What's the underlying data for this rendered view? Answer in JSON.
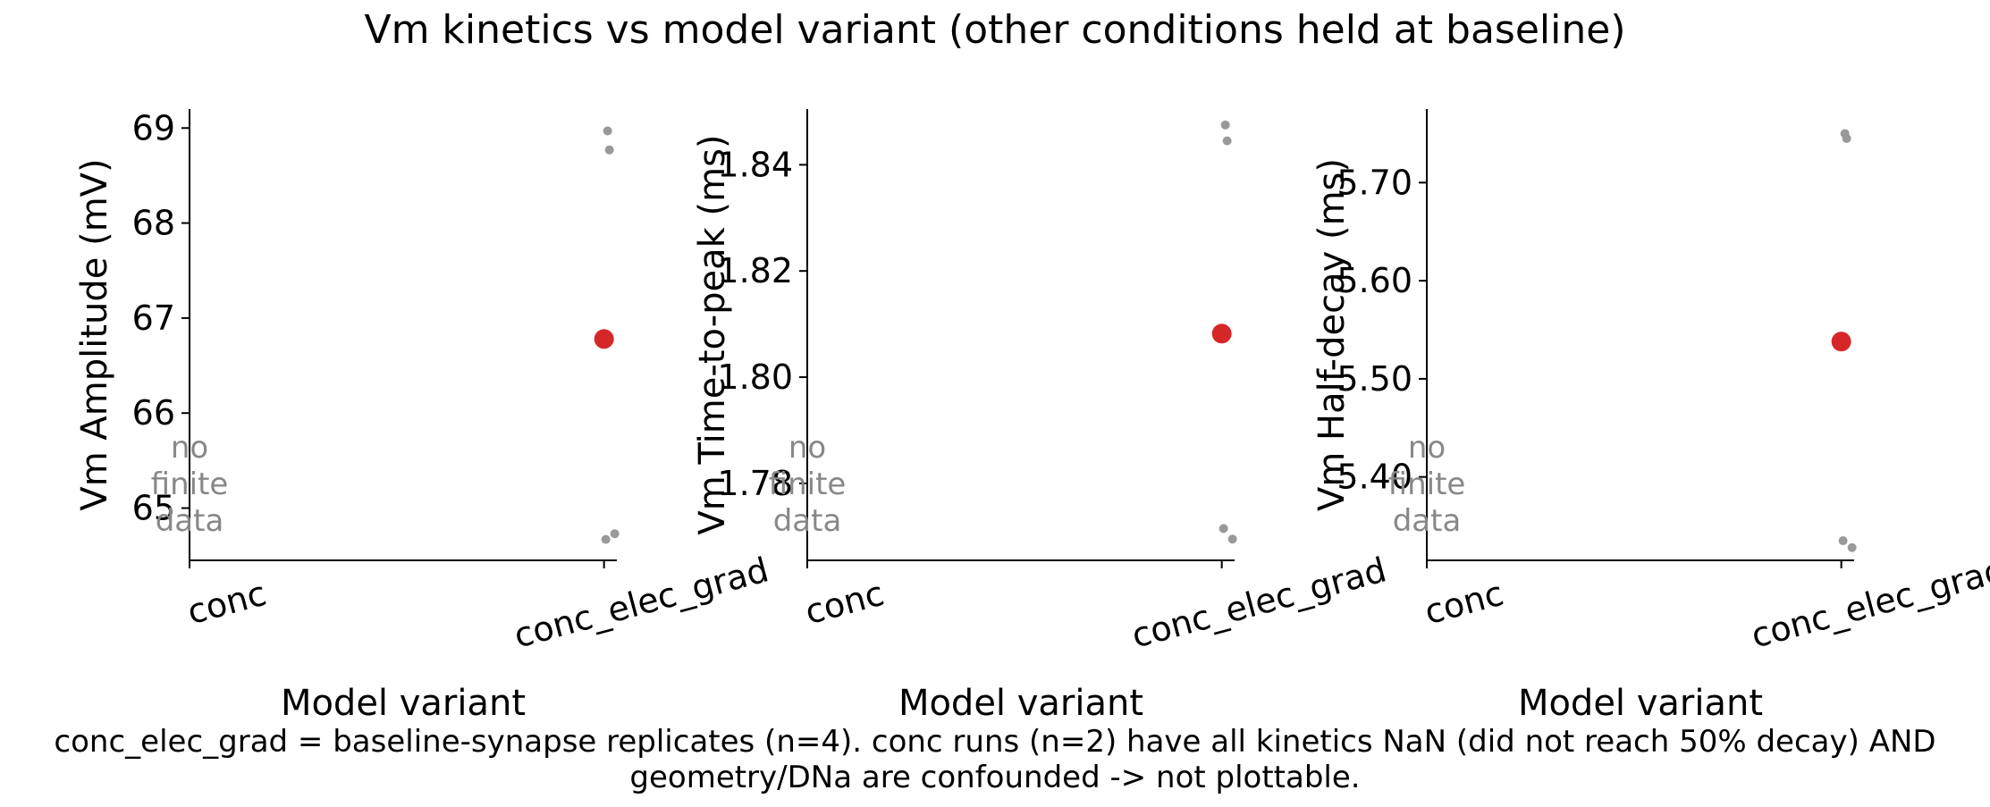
{
  "figure": {
    "title": "Vm kinetics vs model variant (other conditions held at baseline)",
    "caption_line1": "conc_elec_grad = baseline-synapse replicates (n=4). conc runs (n=2) have all kinetics NaN (did not reach 50% decay) AND",
    "caption_line2": "geometry/DNa are confounded -> not plottable.",
    "no_data_text": "no\nfinite\ndata",
    "colors": {
      "mean": "#d62728",
      "replicate": "#999999",
      "no_data": "#888888",
      "axis": "#000000"
    }
  },
  "chart_data": [
    {
      "type": "scatter",
      "categories": [
        "conc",
        "conc_elec_grad"
      ],
      "xlabel": "Model variant",
      "ylabel": "Vm Amplitude (mV)",
      "ylim": [
        64.45,
        69.2
      ],
      "yticks": [
        65,
        66,
        67,
        68,
        69
      ],
      "series": [
        {
          "category": "conc",
          "values": [],
          "note": "no finite data"
        },
        {
          "category": "conc_elec_grad",
          "replicates": [
            68.97,
            68.77,
            64.67,
            64.73
          ],
          "mean": 66.78
        }
      ],
      "grid": false
    },
    {
      "type": "scatter",
      "categories": [
        "conc",
        "conc_elec_grad"
      ],
      "xlabel": "Model variant",
      "ylabel": "Vm Time-to-peak (ms)",
      "ylim": [
        1.7655,
        1.8505
      ],
      "yticks": [
        1.78,
        1.8,
        1.82,
        1.84
      ],
      "series": [
        {
          "category": "conc",
          "values": [],
          "note": "no finite data"
        },
        {
          "category": "conc_elec_grad",
          "replicates": [
            1.8475,
            1.8445,
            1.7715,
            1.7695
          ],
          "mean": 1.8082
        }
      ],
      "grid": false
    },
    {
      "type": "scatter",
      "categories": [
        "conc",
        "conc_elec_grad"
      ],
      "xlabel": "Model variant",
      "ylabel": "Vm Half-decay (ms)",
      "ylim": [
        5.315,
        5.775
      ],
      "yticks": [
        5.4,
        5.5,
        5.6,
        5.7
      ],
      "series": [
        {
          "category": "conc",
          "values": [],
          "note": "no finite data"
        },
        {
          "category": "conc_elec_grad",
          "replicates": [
            5.75,
            5.745,
            5.335,
            5.328
          ],
          "mean": 5.538
        }
      ],
      "grid": false
    }
  ]
}
